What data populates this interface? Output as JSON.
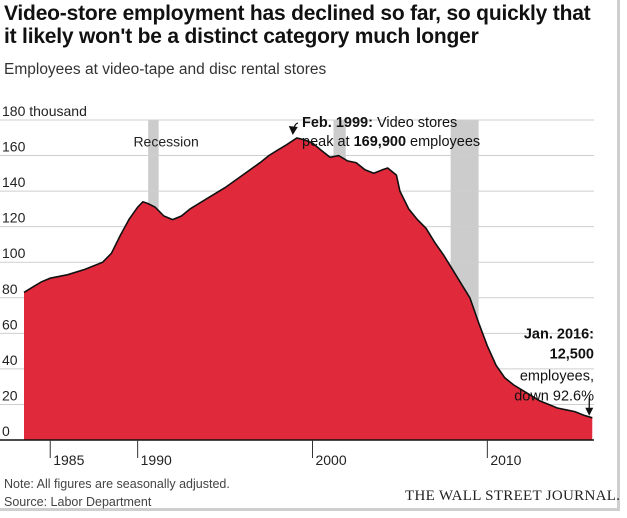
{
  "header": {
    "title": "Video-store employment has declined so far, so quickly that it likely won't be a distinct category much longer",
    "subtitle": "Employees at video-tape and disc rental stores"
  },
  "footer": {
    "note": "Note: All figures are seasonally adjusted.",
    "source": "Source: Labor Department",
    "publisher": "THE WALL STREET JOURNAL."
  },
  "colors": {
    "area_fill": "#e02a3c",
    "area_line": "#111111",
    "recession": "#cccccc",
    "grid": "#cfcfcf",
    "text": "#222222"
  },
  "chart_data": {
    "type": "area",
    "title": "Employees at video-tape and disc rental stores",
    "ylabel_top": "180 thousand",
    "ylim": [
      0,
      180
    ],
    "xlim": [
      1983.5,
      2016.1
    ],
    "y_ticks": [
      {
        "value": 0,
        "label": "0"
      },
      {
        "value": 20,
        "label": "20"
      },
      {
        "value": 40,
        "label": "40"
      },
      {
        "value": 60,
        "label": "60"
      },
      {
        "value": 80,
        "label": "80"
      },
      {
        "value": 100,
        "label": "100"
      },
      {
        "value": 120,
        "label": "120"
      },
      {
        "value": 140,
        "label": "140"
      },
      {
        "value": 160,
        "label": "160"
      },
      {
        "value": 180,
        "label": "180 thousand"
      }
    ],
    "x_ticks": [
      {
        "value": 1985,
        "label": "1985"
      },
      {
        "value": 1990,
        "label": "1990"
      },
      {
        "value": 2000,
        "label": "2000"
      },
      {
        "value": 2010,
        "label": "2010"
      }
    ],
    "grid": true,
    "recessions": [
      {
        "start": 1990.6,
        "end": 1991.2
      },
      {
        "start": 2001.2,
        "end": 2001.9
      },
      {
        "start": 2007.9,
        "end": 2009.5
      }
    ],
    "recession_label": "Recession",
    "series": [
      {
        "x": [
          1983.5,
          1984.0,
          1984.5,
          1985.0,
          1986.0,
          1987.0,
          1988.0,
          1988.5,
          1989.0,
          1989.5,
          1990.0,
          1990.3,
          1990.6,
          1991.0,
          1991.5,
          1992.0,
          1992.5,
          1993.0,
          1993.5,
          1994.0,
          1995.0,
          1996.0,
          1997.0,
          1997.5,
          1998.0,
          1998.5,
          1999.1,
          1999.5,
          2000.0,
          2000.5,
          2001.0,
          2001.5,
          2002.0,
          2002.5,
          2003.0,
          2003.5,
          2004.0,
          2004.3,
          2004.8,
          2005.0,
          2005.5,
          2006.0,
          2006.5,
          2007.0,
          2007.5,
          2008.0,
          2008.5,
          2009.0,
          2009.5,
          2010.0,
          2010.5,
          2011.0,
          2011.5,
          2012.0,
          2012.5,
          2013.0,
          2013.5,
          2014.0,
          2014.5,
          2015.0,
          2015.5,
          2016.0
        ],
        "y": [
          83,
          86,
          89,
          91,
          93,
          96,
          100,
          105,
          115,
          124,
          131,
          134,
          133,
          131,
          126,
          124,
          126,
          130,
          133,
          136,
          142,
          149,
          156,
          160,
          163,
          166,
          169.9,
          169,
          167,
          163,
          159,
          160,
          157,
          156,
          152,
          150,
          152,
          153,
          149,
          140,
          130,
          124,
          119,
          111,
          104,
          96,
          88,
          80,
          66,
          53,
          42,
          35,
          31,
          28,
          25,
          22,
          20,
          18,
          17,
          16,
          14,
          12.5
        ]
      }
    ],
    "annotations": [
      {
        "id": "peak",
        "x": 1999.1,
        "y": 169.9,
        "line1_bold": "Feb. 1999:",
        "line1_rest": " Video stores",
        "line2_pre": "peak at ",
        "line2_bold": "169,900",
        "line2_post": " employees"
      },
      {
        "id": "latest",
        "x": 2016.0,
        "y": 12.5,
        "lines_bold": [
          "Jan. 2016:",
          "12,500"
        ],
        "lines": [
          "employees,",
          "down 92.6%"
        ]
      }
    ]
  }
}
